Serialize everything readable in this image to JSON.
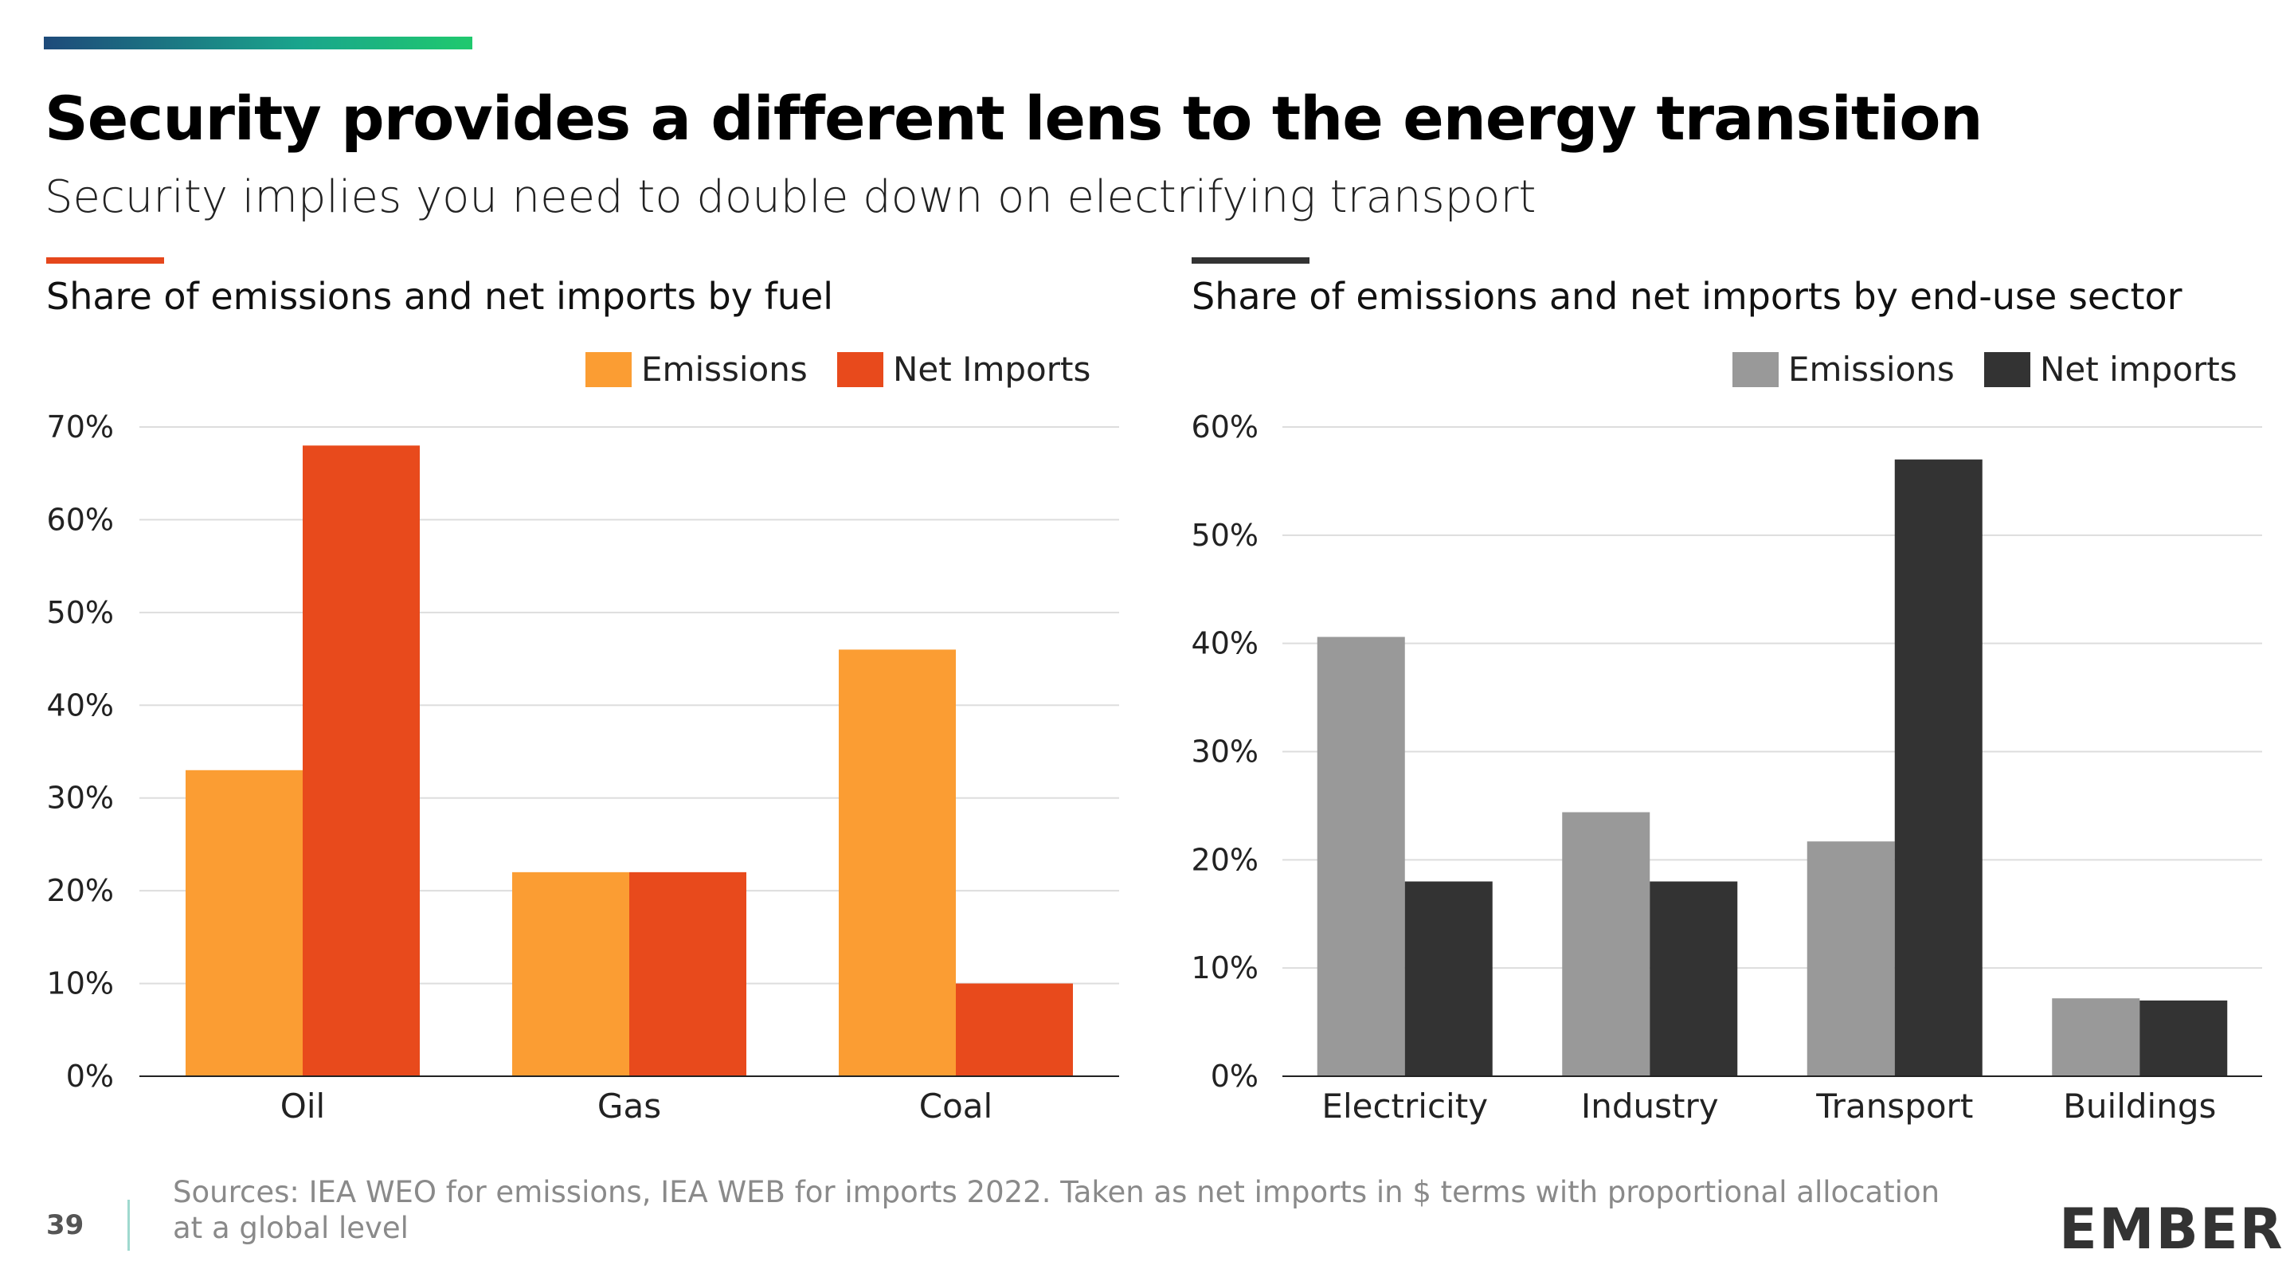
{
  "header": {
    "title": "Security provides a different lens to the energy transition",
    "subtitle": "Security implies you need to double down on electrifying transport"
  },
  "colors": {
    "emissions_fuel": "#fb9d33",
    "net_imports_fuel": "#e84a1c",
    "emissions_sector": "#999999",
    "net_imports_sector": "#333333",
    "accent_left": "#e5471c",
    "accent_right": "#333333",
    "gridline": "#dddddd"
  },
  "chart_data": [
    {
      "type": "bar",
      "title": "Share of emissions and net imports by fuel",
      "categories": [
        "Oil",
        "Gas",
        "Coal"
      ],
      "series": [
        {
          "name": "Emissions",
          "values": [
            33,
            22,
            46
          ],
          "color": "#fb9d33"
        },
        {
          "name": "Net Imports",
          "values": [
            68,
            22,
            10
          ],
          "color": "#e84a1c"
        }
      ],
      "ylim": [
        0,
        70
      ],
      "yticks": [
        "0%",
        "10%",
        "20%",
        "30%",
        "40%",
        "50%",
        "60%",
        "70%"
      ],
      "legend": "top-right",
      "grid": true
    },
    {
      "type": "bar",
      "title": "Share of emissions and net imports by end-use sector",
      "categories": [
        "Electricity",
        "Industry",
        "Transport",
        "Buildings"
      ],
      "series": [
        {
          "name": "Emissions",
          "values": [
            40.6,
            24.4,
            21.7,
            7.2
          ],
          "color": "#999999"
        },
        {
          "name": "Net imports",
          "values": [
            18,
            18,
            57,
            7
          ],
          "color": "#333333"
        }
      ],
      "ylim": [
        0,
        60
      ],
      "yticks": [
        "0%",
        "10%",
        "20%",
        "30%",
        "40%",
        "50%",
        "60%"
      ],
      "legend": "top-right",
      "grid": true
    }
  ],
  "footer": {
    "page_number": "39",
    "sources": "Sources: IEA WEO for emissions, IEA WEB for imports 2022.  Taken as net imports in $ terms with proportional allocation at a global level",
    "logo": "EMBER"
  }
}
